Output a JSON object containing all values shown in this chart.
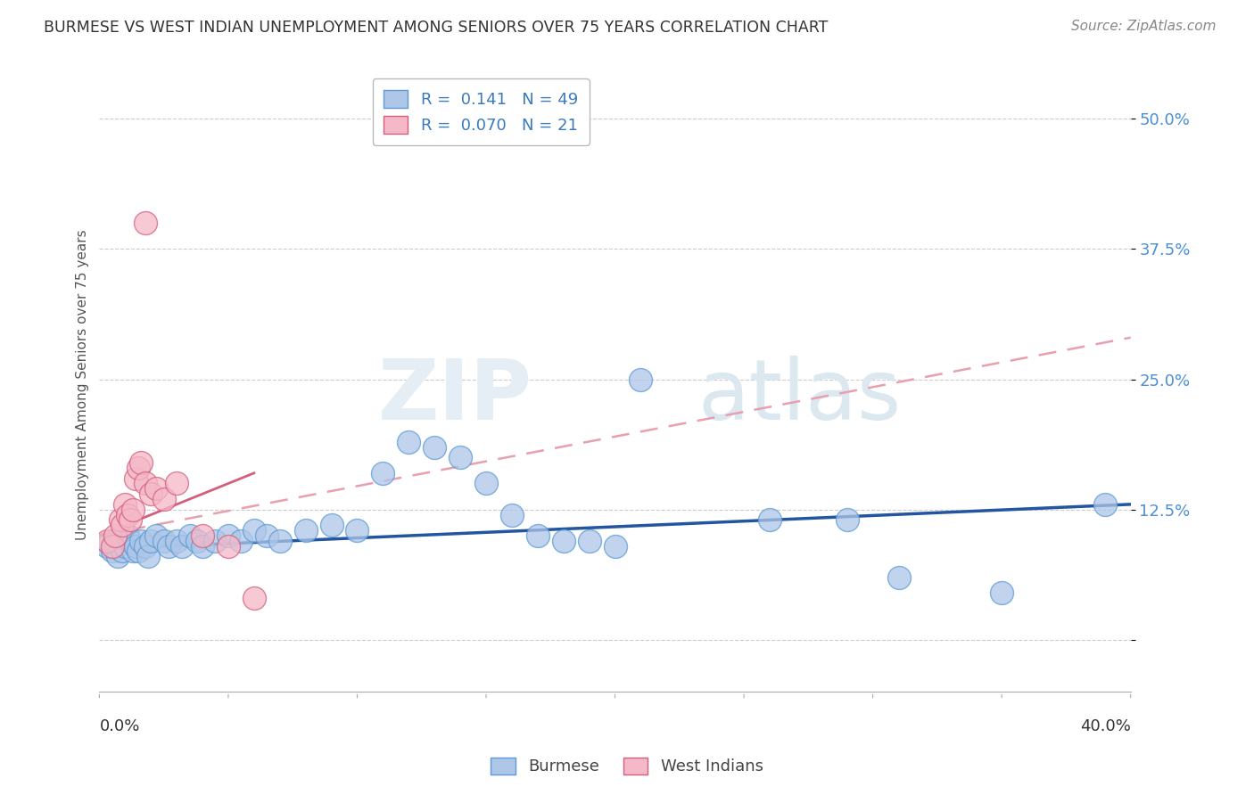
{
  "title": "BURMESE VS WEST INDIAN UNEMPLOYMENT AMONG SENIORS OVER 75 YEARS CORRELATION CHART",
  "source": "Source: ZipAtlas.com",
  "ylabel": "Unemployment Among Seniors over 75 years",
  "ytick_values": [
    0.0,
    0.125,
    0.25,
    0.375,
    0.5
  ],
  "ytick_labels": [
    "",
    "12.5%",
    "25.0%",
    "37.5%",
    "50.0%"
  ],
  "xmin": 0.0,
  "xmax": 0.4,
  "ymin": -0.05,
  "ymax": 0.54,
  "burmese_color": "#aec6e8",
  "burmese_edge_color": "#5b9bd5",
  "west_indian_color": "#f4b8c8",
  "west_indian_edge_color": "#d45f7a",
  "burmese_line_color": "#2355a0",
  "west_indian_line_color": "#d45f7a",
  "west_indian_dash_color": "#e8a0b0",
  "burmese_x": [
    0.003,
    0.005,
    0.006,
    0.007,
    0.008,
    0.009,
    0.01,
    0.011,
    0.012,
    0.013,
    0.014,
    0.015,
    0.016,
    0.018,
    0.019,
    0.02,
    0.022,
    0.025,
    0.027,
    0.03,
    0.032,
    0.035,
    0.038,
    0.04,
    0.045,
    0.05,
    0.055,
    0.06,
    0.065,
    0.07,
    0.08,
    0.09,
    0.1,
    0.11,
    0.12,
    0.13,
    0.14,
    0.15,
    0.16,
    0.17,
    0.18,
    0.19,
    0.2,
    0.21,
    0.26,
    0.29,
    0.31,
    0.35,
    0.39
  ],
  "burmese_y": [
    0.09,
    0.085,
    0.095,
    0.08,
    0.1,
    0.085,
    0.09,
    0.1,
    0.095,
    0.085,
    0.09,
    0.085,
    0.095,
    0.09,
    0.08,
    0.095,
    0.1,
    0.095,
    0.09,
    0.095,
    0.09,
    0.1,
    0.095,
    0.09,
    0.095,
    0.1,
    0.095,
    0.105,
    0.1,
    0.095,
    0.105,
    0.11,
    0.105,
    0.16,
    0.19,
    0.185,
    0.175,
    0.15,
    0.12,
    0.1,
    0.095,
    0.095,
    0.09,
    0.25,
    0.115,
    0.115,
    0.06,
    0.045,
    0.13
  ],
  "west_indian_x": [
    0.003,
    0.005,
    0.006,
    0.008,
    0.009,
    0.01,
    0.011,
    0.012,
    0.013,
    0.014,
    0.015,
    0.016,
    0.018,
    0.02,
    0.022,
    0.025,
    0.03,
    0.04,
    0.05,
    0.06,
    0.018
  ],
  "west_indian_y": [
    0.095,
    0.09,
    0.1,
    0.115,
    0.11,
    0.13,
    0.12,
    0.115,
    0.125,
    0.155,
    0.165,
    0.17,
    0.15,
    0.14,
    0.145,
    0.135,
    0.15,
    0.1,
    0.09,
    0.04,
    0.4
  ],
  "burmese_trend_x": [
    0.0,
    0.4
  ],
  "burmese_trend_y": [
    0.087,
    0.13
  ],
  "west_indian_trend_x": [
    0.0,
    0.4
  ],
  "west_indian_trend_y": [
    0.1,
    0.29
  ]
}
